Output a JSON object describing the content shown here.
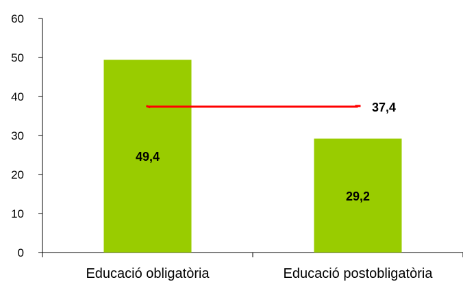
{
  "chart_data": {
    "type": "bar",
    "title": "",
    "xlabel": "",
    "ylabel": "",
    "categories": [
      "Educació obligatòria",
      "Educació postobligatòria"
    ],
    "series": [
      {
        "values": [
          49.4,
          29.2
        ],
        "labels": [
          "49,4",
          "29,2"
        ],
        "color": "#99cc00"
      }
    ],
    "reference_line": {
      "value": 37.4,
      "label": "37,4",
      "color": "#ff0000"
    },
    "ylim": [
      0,
      60
    ],
    "yticks": [
      0,
      10,
      20,
      30,
      40,
      50,
      60
    ],
    "ytick_labels": [
      "0",
      "10",
      "20",
      "30",
      "40",
      "50",
      "60"
    ],
    "grid": false,
    "legend": "none"
  }
}
